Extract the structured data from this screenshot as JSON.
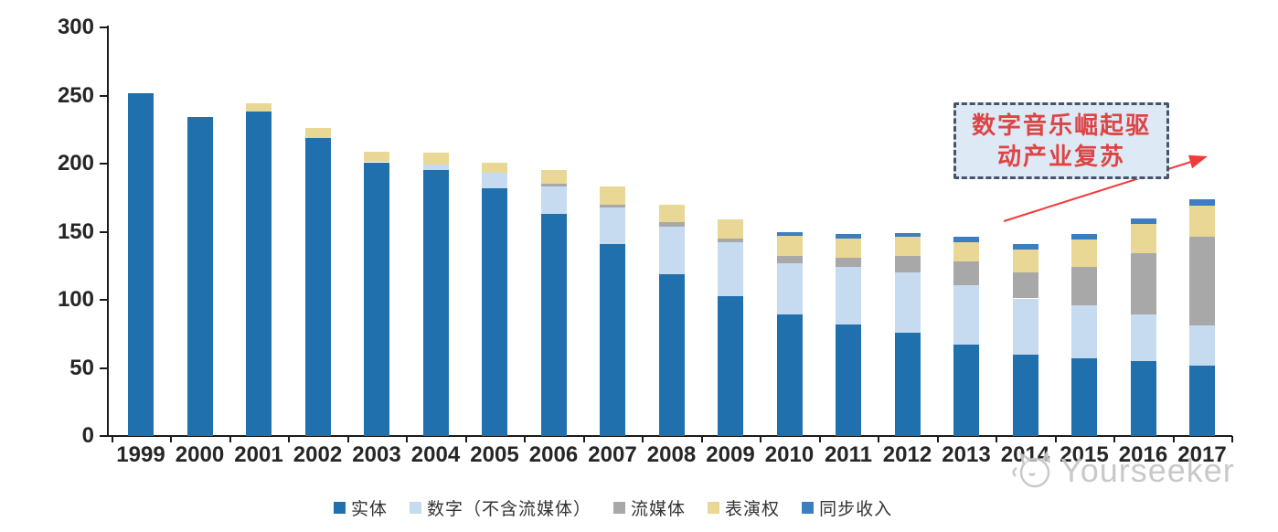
{
  "chart_data": {
    "type": "bar",
    "stacked": true,
    "title": "",
    "categories": [
      "1999",
      "2000",
      "2001",
      "2002",
      "2003",
      "2004",
      "2005",
      "2006",
      "2007",
      "2008",
      "2009",
      "2010",
      "2011",
      "2012",
      "2013",
      "2014",
      "2015",
      "2016",
      "2017"
    ],
    "series": [
      {
        "key": "physical",
        "name": "实体",
        "color": "#2170AE",
        "values": [
          252,
          234,
          238,
          219,
          201,
          195,
          182,
          163,
          141,
          119,
          103,
          89,
          82,
          76,
          67,
          60,
          57,
          55,
          52
        ]
      },
      {
        "key": "digital",
        "name": "数字（不含流媒体）",
        "color": "#C6DBEF",
        "values": [
          0,
          0,
          0,
          0,
          0,
          4,
          11,
          20,
          27,
          35,
          39,
          38,
          42,
          44,
          44,
          41,
          39,
          34,
          29
        ]
      },
      {
        "key": "streaming",
        "name": "流媒体",
        "color": "#A8A8A8",
        "values": [
          0,
          0,
          0,
          0,
          0,
          0,
          0,
          2,
          2,
          3,
          3,
          5,
          7,
          12,
          17,
          19,
          28,
          45,
          65
        ]
      },
      {
        "key": "performance",
        "name": "表演权",
        "color": "#E9D795",
        "values": [
          0,
          0,
          6,
          7,
          8,
          9,
          8,
          10,
          13,
          13,
          14,
          15,
          14,
          14,
          14,
          17,
          20,
          22,
          23
        ]
      },
      {
        "key": "sync",
        "name": "同步收入",
        "color": "#3C7EBF",
        "values": [
          0,
          0,
          0,
          0,
          0,
          0,
          0,
          0,
          0,
          0,
          0,
          3,
          3,
          3,
          4,
          4,
          4,
          4,
          5
        ]
      }
    ],
    "ylim": [
      0,
      300
    ],
    "yticks": [
      0,
      50,
      100,
      150,
      200,
      250,
      300
    ],
    "grid": false,
    "legend_position": "bottom"
  },
  "colors": {
    "axis": "#1a1a1a",
    "annotation_fill": "#DEE9F6",
    "annotation_border": "#44546A",
    "annotation_text": "#DD4444",
    "arrow": "#F03B3B",
    "watermark": "#C7C7C7"
  },
  "annotation": {
    "line1": "数字音乐崛起驱",
    "line2": "动产业复苏"
  },
  "watermark": {
    "text": "Yourseeker",
    "logo_icon": "cat-face-icon"
  }
}
